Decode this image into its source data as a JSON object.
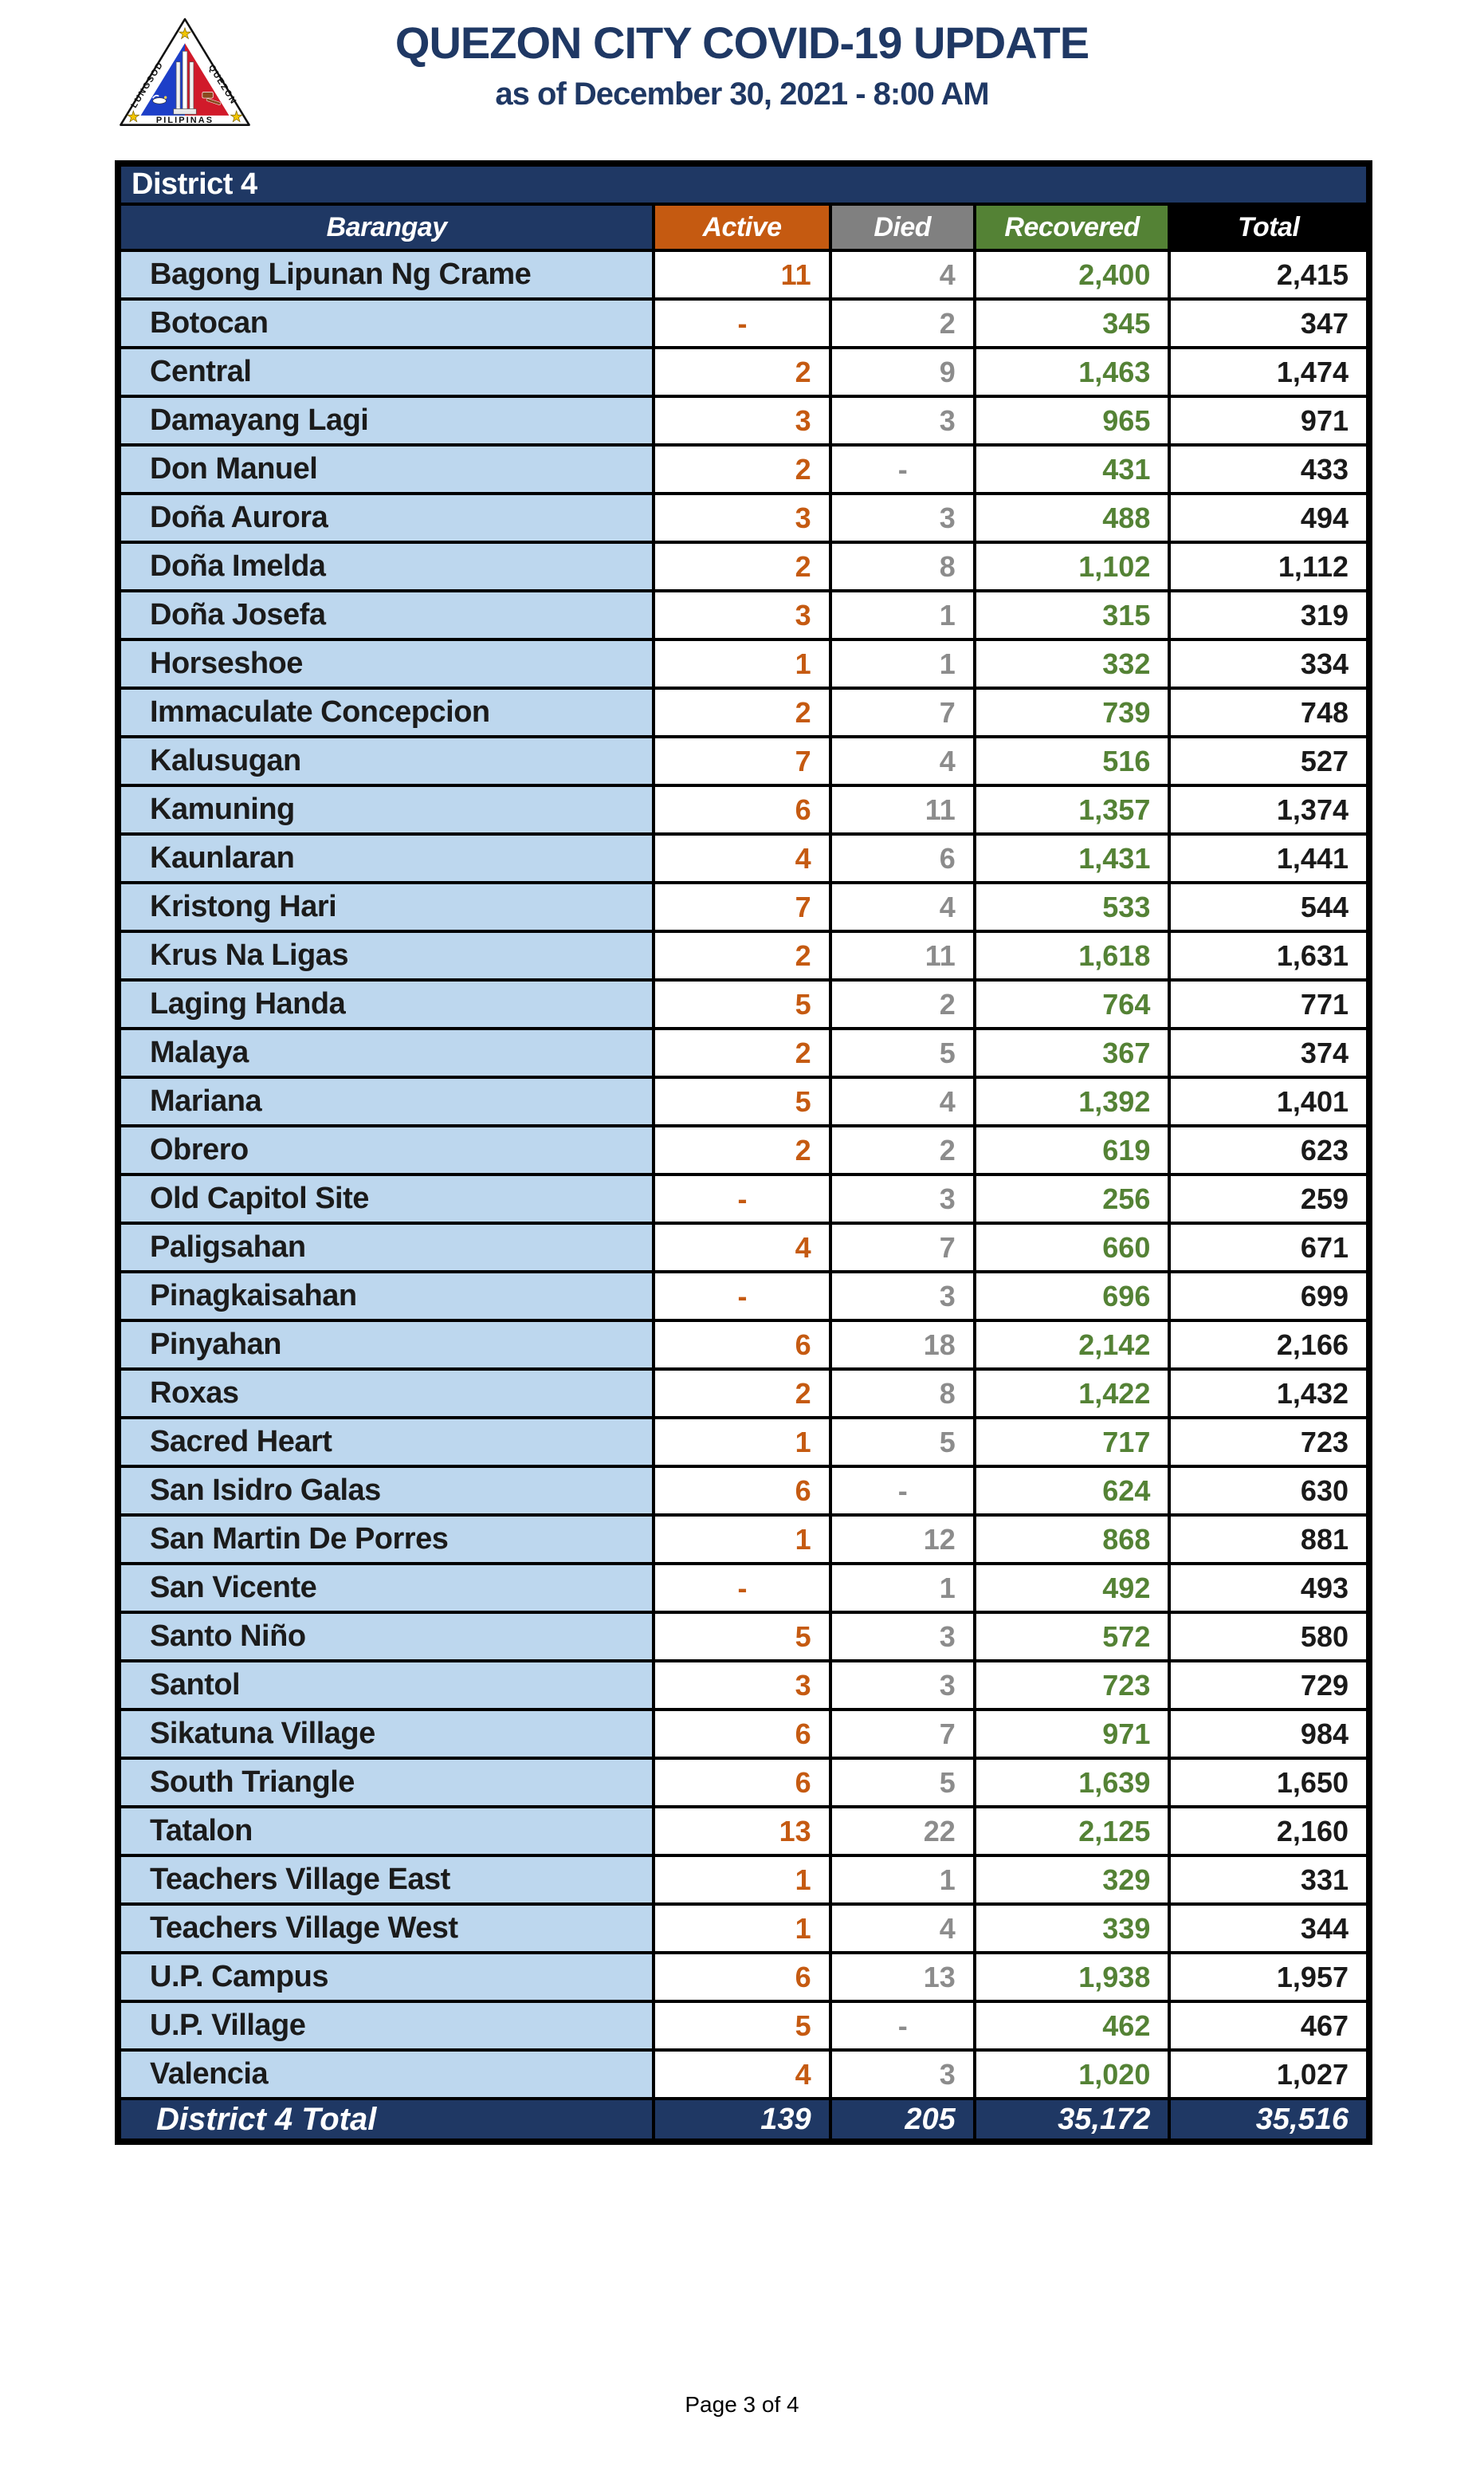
{
  "header": {
    "title": "QUEZON CITY COVID-19 UPDATE",
    "subtitle": "as of December 30, 2021 - 8:00 AM",
    "logo": {
      "name": "quezon-city-seal",
      "text_left": "LUNGSOD",
      "text_right": "QUEZON",
      "text_bottom": "PILIPINAS"
    }
  },
  "table": {
    "district_label": "District 4",
    "columns": [
      "Barangay",
      "Active",
      "Died",
      "Recovered",
      "Total"
    ],
    "rows": [
      {
        "barangay": "Bagong Lipunan Ng Crame",
        "active": "11",
        "died": "4",
        "recovered": "2,400",
        "total": "2,415"
      },
      {
        "barangay": "Botocan",
        "active": "-",
        "died": "2",
        "recovered": "345",
        "total": "347"
      },
      {
        "barangay": "Central",
        "active": "2",
        "died": "9",
        "recovered": "1,463",
        "total": "1,474"
      },
      {
        "barangay": "Damayang Lagi",
        "active": "3",
        "died": "3",
        "recovered": "965",
        "total": "971"
      },
      {
        "barangay": "Don Manuel",
        "active": "2",
        "died": "-",
        "recovered": "431",
        "total": "433"
      },
      {
        "barangay": "Doña Aurora",
        "active": "3",
        "died": "3",
        "recovered": "488",
        "total": "494"
      },
      {
        "barangay": "Doña Imelda",
        "active": "2",
        "died": "8",
        "recovered": "1,102",
        "total": "1,112"
      },
      {
        "barangay": "Doña Josefa",
        "active": "3",
        "died": "1",
        "recovered": "315",
        "total": "319"
      },
      {
        "barangay": "Horseshoe",
        "active": "1",
        "died": "1",
        "recovered": "332",
        "total": "334"
      },
      {
        "barangay": "Immaculate Concepcion",
        "active": "2",
        "died": "7",
        "recovered": "739",
        "total": "748"
      },
      {
        "barangay": "Kalusugan",
        "active": "7",
        "died": "4",
        "recovered": "516",
        "total": "527"
      },
      {
        "barangay": "Kamuning",
        "active": "6",
        "died": "11",
        "recovered": "1,357",
        "total": "1,374"
      },
      {
        "barangay": "Kaunlaran",
        "active": "4",
        "died": "6",
        "recovered": "1,431",
        "total": "1,441"
      },
      {
        "barangay": "Kristong Hari",
        "active": "7",
        "died": "4",
        "recovered": "533",
        "total": "544"
      },
      {
        "barangay": "Krus Na Ligas",
        "active": "2",
        "died": "11",
        "recovered": "1,618",
        "total": "1,631"
      },
      {
        "barangay": "Laging Handa",
        "active": "5",
        "died": "2",
        "recovered": "764",
        "total": "771"
      },
      {
        "barangay": "Malaya",
        "active": "2",
        "died": "5",
        "recovered": "367",
        "total": "374"
      },
      {
        "barangay": "Mariana",
        "active": "5",
        "died": "4",
        "recovered": "1,392",
        "total": "1,401"
      },
      {
        "barangay": "Obrero",
        "active": "2",
        "died": "2",
        "recovered": "619",
        "total": "623"
      },
      {
        "barangay": "Old Capitol Site",
        "active": "-",
        "died": "3",
        "recovered": "256",
        "total": "259"
      },
      {
        "barangay": "Paligsahan",
        "active": "4",
        "died": "7",
        "recovered": "660",
        "total": "671"
      },
      {
        "barangay": "Pinagkaisahan",
        "active": "-",
        "died": "3",
        "recovered": "696",
        "total": "699"
      },
      {
        "barangay": "Pinyahan",
        "active": "6",
        "died": "18",
        "recovered": "2,142",
        "total": "2,166"
      },
      {
        "barangay": "Roxas",
        "active": "2",
        "died": "8",
        "recovered": "1,422",
        "total": "1,432"
      },
      {
        "barangay": "Sacred Heart",
        "active": "1",
        "died": "5",
        "recovered": "717",
        "total": "723"
      },
      {
        "barangay": "San Isidro Galas",
        "active": "6",
        "died": "-",
        "recovered": "624",
        "total": "630"
      },
      {
        "barangay": "San Martin De Porres",
        "active": "1",
        "died": "12",
        "recovered": "868",
        "total": "881"
      },
      {
        "barangay": "San Vicente",
        "active": "-",
        "died": "1",
        "recovered": "492",
        "total": "493"
      },
      {
        "barangay": "Santo Niño",
        "active": "5",
        "died": "3",
        "recovered": "572",
        "total": "580"
      },
      {
        "barangay": "Santol",
        "active": "3",
        "died": "3",
        "recovered": "723",
        "total": "729"
      },
      {
        "barangay": "Sikatuna Village",
        "active": "6",
        "died": "7",
        "recovered": "971",
        "total": "984"
      },
      {
        "barangay": "South Triangle",
        "active": "6",
        "died": "5",
        "recovered": "1,639",
        "total": "1,650"
      },
      {
        "barangay": "Tatalon",
        "active": "13",
        "died": "22",
        "recovered": "2,125",
        "total": "2,160"
      },
      {
        "barangay": "Teachers Village East",
        "active": "1",
        "died": "1",
        "recovered": "329",
        "total": "331"
      },
      {
        "barangay": "Teachers Village West",
        "active": "1",
        "died": "4",
        "recovered": "339",
        "total": "344"
      },
      {
        "barangay": "U.P. Campus",
        "active": "6",
        "died": "13",
        "recovered": "1,938",
        "total": "1,957"
      },
      {
        "barangay": "U.P. Village",
        "active": "5",
        "died": "-",
        "recovered": "462",
        "total": "467"
      },
      {
        "barangay": "Valencia",
        "active": "4",
        "died": "3",
        "recovered": "1,020",
        "total": "1,027"
      }
    ],
    "total_row": {
      "label": "District 4 Total",
      "active": "139",
      "died": "205",
      "recovered": "35,172",
      "total": "35,516"
    }
  },
  "footer": {
    "page_label": "Page 3 of 4"
  },
  "colors": {
    "navy": "#1F3864",
    "light_blue": "#BDD7EE",
    "orange": "#C55A11",
    "gray": "#808080",
    "green": "#548235",
    "col_black": "#000000",
    "died_value": "#8C8C8C",
    "total_value": "#1A1A1A"
  }
}
